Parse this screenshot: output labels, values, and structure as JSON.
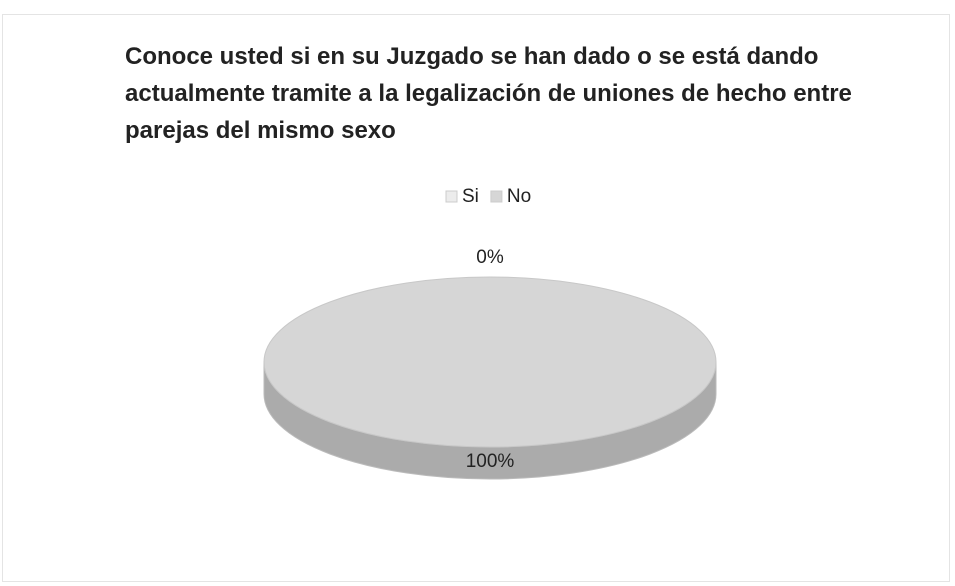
{
  "chart_data": {
    "type": "pie",
    "title": "Conoce usted si en su Juzgado se han dado o se está dando actualmente tramite a la legalización de uniones de hecho entre parejas del mismo sexo",
    "categories": [
      "Si",
      "No"
    ],
    "values": [
      0,
      100
    ],
    "value_labels": [
      "0%",
      "100%"
    ],
    "colors": [
      "#ececec",
      "#d6d6d6"
    ],
    "legend": "top"
  }
}
